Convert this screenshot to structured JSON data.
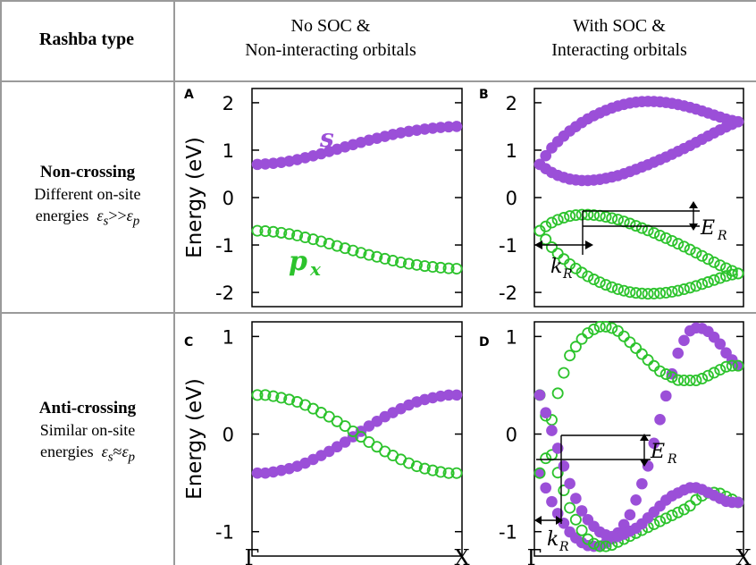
{
  "header": {
    "col0": "Rashba type",
    "col1": [
      "No SOC &",
      "Non-interacting orbitals"
    ],
    "col2": [
      "With SOC &",
      "Interacting orbitals"
    ]
  },
  "rows": [
    {
      "title": "Non-crossing",
      "line2": "Different on-site",
      "line3_prefix": "energies",
      "relation": ">>"
    },
    {
      "title": "Anti-crossing",
      "line2": "Similar on-site",
      "line3_prefix": "energies",
      "relation": "≈"
    }
  ],
  "symbols": {
    "eps": "ε",
    "sub_s": "s",
    "sub_p": "p",
    "ER": "E",
    "ER_sub": "R",
    "kR": "k",
    "kR_sub": "R"
  },
  "colors": {
    "s_band": "#9b4fd8",
    "p_band": "#2cc32c",
    "grid": "#9a9a9a"
  },
  "chart_data": [
    {
      "type": "scatter",
      "panel": "A",
      "ylabel": "Energy (eV)",
      "ylim": [
        -2.3,
        2.3
      ],
      "yticks": [
        "2",
        "1",
        "0",
        "-1",
        "-2"
      ],
      "xlabels": [
        "Γ",
        "X"
      ],
      "xlim": [
        0,
        1
      ],
      "annotations": [
        "s",
        "p",
        "x"
      ],
      "series": [
        {
          "name": "s",
          "marker": "filled",
          "color": "#9b4fd8",
          "x": [
            0,
            0.05,
            0.1,
            0.15,
            0.2,
            0.25,
            0.3,
            0.35,
            0.4,
            0.45,
            0.5,
            0.55,
            0.6,
            0.65,
            0.7,
            0.75,
            0.8,
            0.85,
            0.9,
            0.95,
            1.0
          ],
          "y": [
            0.7,
            0.71,
            0.73,
            0.76,
            0.8,
            0.85,
            0.9,
            0.96,
            1.02,
            1.08,
            1.14,
            1.2,
            1.25,
            1.3,
            1.35,
            1.39,
            1.42,
            1.45,
            1.47,
            1.49,
            1.5
          ]
        },
        {
          "name": "p_x",
          "marker": "open",
          "color": "#2cc32c",
          "x": [
            0,
            0.05,
            0.1,
            0.15,
            0.2,
            0.25,
            0.3,
            0.35,
            0.4,
            0.45,
            0.5,
            0.55,
            0.6,
            0.65,
            0.7,
            0.75,
            0.8,
            0.85,
            0.9,
            0.95,
            1.0
          ],
          "y": [
            -0.7,
            -0.71,
            -0.73,
            -0.76,
            -0.8,
            -0.85,
            -0.9,
            -0.96,
            -1.02,
            -1.08,
            -1.14,
            -1.2,
            -1.25,
            -1.3,
            -1.35,
            -1.39,
            -1.42,
            -1.45,
            -1.47,
            -1.49,
            -1.5
          ]
        }
      ]
    },
    {
      "type": "scatter",
      "panel": "B",
      "ylabel": "",
      "ylim": [
        -2.3,
        2.3
      ],
      "yticks": [
        "2",
        "1",
        "0",
        "-1",
        "-2"
      ],
      "xlabels": [
        "Γ",
        "X"
      ],
      "xlim": [
        0,
        1
      ],
      "annotations": [
        "E_R",
        "k_R"
      ],
      "series": [
        {
          "name": "s upper",
          "marker": "filled",
          "color": "#9b4fd8",
          "x": [
            0,
            0.05,
            0.1,
            0.15,
            0.2,
            0.25,
            0.3,
            0.35,
            0.4,
            0.45,
            0.5,
            0.55,
            0.6,
            0.65,
            0.7,
            0.75,
            0.8,
            0.85,
            0.9,
            0.95,
            1.0
          ],
          "y": [
            0.7,
            1.0,
            1.22,
            1.4,
            1.55,
            1.68,
            1.78,
            1.87,
            1.94,
            1.99,
            2.02,
            2.03,
            2.02,
            2.0,
            1.96,
            1.91,
            1.85,
            1.78,
            1.71,
            1.64,
            1.6
          ]
        },
        {
          "name": "s lower",
          "marker": "filled",
          "color": "#9b4fd8",
          "x": [
            0,
            0.05,
            0.1,
            0.15,
            0.2,
            0.25,
            0.3,
            0.35,
            0.4,
            0.45,
            0.5,
            0.55,
            0.6,
            0.65,
            0.7,
            0.75,
            0.8,
            0.85,
            0.9,
            0.95,
            1.0
          ],
          "y": [
            0.7,
            0.55,
            0.45,
            0.39,
            0.36,
            0.36,
            0.38,
            0.42,
            0.47,
            0.54,
            0.62,
            0.7,
            0.79,
            0.88,
            0.98,
            1.08,
            1.19,
            1.3,
            1.41,
            1.51,
            1.6
          ]
        },
        {
          "name": "p upper",
          "marker": "open",
          "color": "#2cc32c",
          "x": [
            0,
            0.05,
            0.1,
            0.15,
            0.2,
            0.25,
            0.3,
            0.35,
            0.4,
            0.45,
            0.5,
            0.55,
            0.6,
            0.65,
            0.7,
            0.75,
            0.8,
            0.85,
            0.9,
            0.95,
            1.0
          ],
          "y": [
            -0.7,
            -0.55,
            -0.45,
            -0.39,
            -0.36,
            -0.36,
            -0.38,
            -0.42,
            -0.47,
            -0.54,
            -0.62,
            -0.7,
            -0.79,
            -0.88,
            -0.98,
            -1.08,
            -1.19,
            -1.3,
            -1.41,
            -1.51,
            -1.6
          ]
        },
        {
          "name": "p lower",
          "marker": "open",
          "color": "#2cc32c",
          "x": [
            0,
            0.05,
            0.1,
            0.15,
            0.2,
            0.25,
            0.3,
            0.35,
            0.4,
            0.45,
            0.5,
            0.55,
            0.6,
            0.65,
            0.7,
            0.75,
            0.8,
            0.85,
            0.9,
            0.95,
            1.0
          ],
          "y": [
            -0.7,
            -1.0,
            -1.22,
            -1.4,
            -1.55,
            -1.68,
            -1.78,
            -1.87,
            -1.94,
            -1.99,
            -2.02,
            -2.03,
            -2.02,
            -2.0,
            -1.96,
            -1.91,
            -1.85,
            -1.78,
            -1.71,
            -1.64,
            -1.6
          ]
        }
      ]
    },
    {
      "type": "scatter",
      "panel": "C",
      "ylabel": "Energy (eV)",
      "ylim": [
        -1.25,
        1.15
      ],
      "yticks": [
        "1",
        "0",
        "-1"
      ],
      "xlabels": [
        "Γ",
        "X"
      ],
      "xlim": [
        0,
        1
      ],
      "series": [
        {
          "name": "s",
          "marker": "filled",
          "color": "#9b4fd8",
          "x": [
            0,
            0.05,
            0.1,
            0.15,
            0.2,
            0.25,
            0.3,
            0.35,
            0.4,
            0.45,
            0.5,
            0.55,
            0.6,
            0.65,
            0.7,
            0.75,
            0.8,
            0.85,
            0.9,
            0.95,
            1.0
          ],
          "y": [
            -0.4,
            -0.4,
            -0.38,
            -0.36,
            -0.33,
            -0.29,
            -0.24,
            -0.19,
            -0.13,
            -0.07,
            0.0,
            0.07,
            0.13,
            0.19,
            0.24,
            0.29,
            0.33,
            0.36,
            0.38,
            0.4,
            0.4
          ]
        },
        {
          "name": "p_x",
          "marker": "open",
          "color": "#2cc32c",
          "x": [
            0,
            0.05,
            0.1,
            0.15,
            0.2,
            0.25,
            0.3,
            0.35,
            0.4,
            0.45,
            0.5,
            0.55,
            0.6,
            0.65,
            0.7,
            0.75,
            0.8,
            0.85,
            0.9,
            0.95,
            1.0
          ],
          "y": [
            0.4,
            0.4,
            0.38,
            0.36,
            0.33,
            0.29,
            0.24,
            0.19,
            0.13,
            0.07,
            0.0,
            -0.07,
            -0.13,
            -0.19,
            -0.24,
            -0.29,
            -0.33,
            -0.36,
            -0.38,
            -0.4,
            -0.4
          ]
        }
      ]
    },
    {
      "type": "scatter",
      "panel": "D",
      "ylabel": "",
      "ylim": [
        -1.25,
        1.15
      ],
      "yticks": [
        "1",
        "0",
        "-1"
      ],
      "xlabels": [
        "Γ",
        "X"
      ],
      "xlim": [
        0,
        1
      ],
      "annotations": [
        "E_R",
        "k_R"
      ],
      "series": [
        {
          "name": "s-like band 1",
          "marker": "filled",
          "color": "#9b4fd8",
          "x": [
            0,
            0.05,
            0.1,
            0.15,
            0.2,
            0.25,
            0.3,
            0.35,
            0.4,
            0.45,
            0.5,
            0.55,
            0.6,
            0.65,
            0.7,
            0.75,
            0.8,
            0.85,
            0.9,
            0.95,
            1.0
          ],
          "y": [
            -0.4,
            -0.65,
            -0.85,
            -1.0,
            -1.1,
            -1.15,
            -1.15,
            -1.1,
            -1.0,
            -0.85,
            -0.6,
            -0.3,
            0.1,
            0.5,
            0.85,
            1.05,
            1.1,
            1.05,
            0.95,
            0.8,
            0.7
          ]
        },
        {
          "name": "p-like band 1",
          "marker": "open",
          "color": "#2cc32c",
          "x": [
            0,
            0.05,
            0.1,
            0.15,
            0.2,
            0.25,
            0.3,
            0.35,
            0.4,
            0.45,
            0.5,
            0.55,
            0.6,
            0.65,
            0.7,
            0.75,
            0.8,
            0.85,
            0.9,
            0.95,
            1.0
          ],
          "y": [
            0.4,
            0.05,
            0.5,
            0.8,
            0.95,
            1.05,
            1.1,
            1.1,
            1.05,
            0.95,
            0.85,
            0.75,
            0.65,
            0.6,
            0.55,
            0.55,
            0.55,
            0.6,
            0.65,
            0.7,
            0.7
          ]
        },
        {
          "name": "p-like band 2",
          "marker": "open",
          "color": "#2cc32c",
          "x": [
            0,
            0.05,
            0.1,
            0.15,
            0.2,
            0.25,
            0.3,
            0.35,
            0.4,
            0.45,
            0.5,
            0.55,
            0.6,
            0.65,
            0.7,
            0.75,
            0.8,
            0.85,
            0.9,
            0.95,
            1.0
          ],
          "y": [
            -0.4,
            -0.15,
            -0.45,
            -0.75,
            -0.95,
            -1.1,
            -1.15,
            -1.15,
            -1.1,
            -1.05,
            -1.0,
            -0.95,
            -0.9,
            -0.85,
            -0.8,
            -0.75,
            -0.65,
            -0.6,
            -0.6,
            -0.65,
            -0.7
          ]
        },
        {
          "name": "s-like band 2",
          "marker": "filled",
          "color": "#9b4fd8",
          "x": [
            0,
            0.05,
            0.1,
            0.15,
            0.2,
            0.25,
            0.3,
            0.35,
            0.4,
            0.45,
            0.5,
            0.55,
            0.6,
            0.65,
            0.7,
            0.75,
            0.8,
            0.85,
            0.9,
            0.95,
            1.0
          ],
          "y": [
            0.4,
            0.1,
            -0.2,
            -0.5,
            -0.75,
            -0.9,
            -1.0,
            -1.05,
            -1.05,
            -1.0,
            -0.95,
            -0.85,
            -0.75,
            -0.65,
            -0.6,
            -0.55,
            -0.55,
            -0.6,
            -0.65,
            -0.7,
            -0.7
          ]
        }
      ]
    }
  ]
}
